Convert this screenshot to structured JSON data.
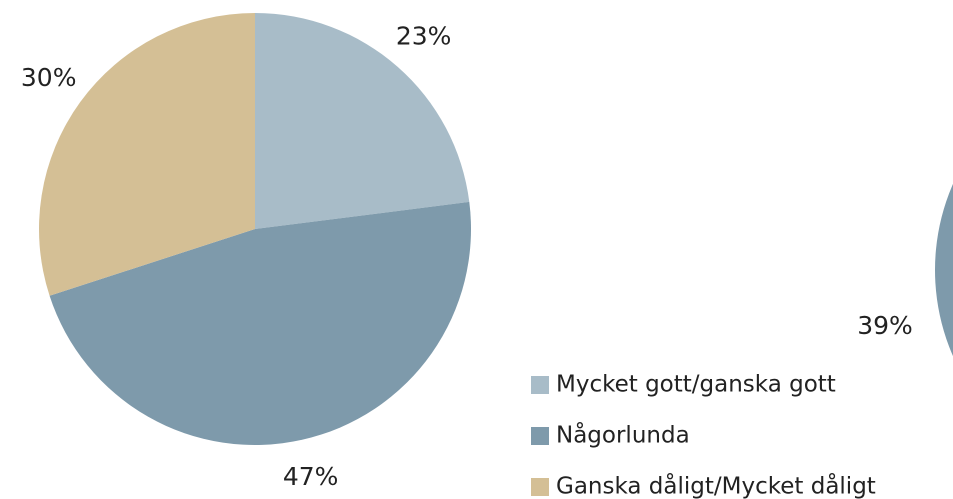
{
  "chart_data": [
    {
      "type": "pie",
      "categories": [
        "Mycket gott/ganska gott",
        "Någorlunda",
        "Ganska dåligt/Mycket dåligt"
      ],
      "values": [
        23,
        47,
        30
      ],
      "value_labels": [
        "23%",
        "47%",
        "30%"
      ],
      "colors": [
        "#a8bcc8",
        "#7e9aab",
        "#d4bf95"
      ],
      "legend": "right"
    },
    {
      "type": "pie",
      "values": [
        39
      ],
      "value_labels": [
        "39%"
      ],
      "colors": [
        "#7e9aab"
      ]
    }
  ]
}
